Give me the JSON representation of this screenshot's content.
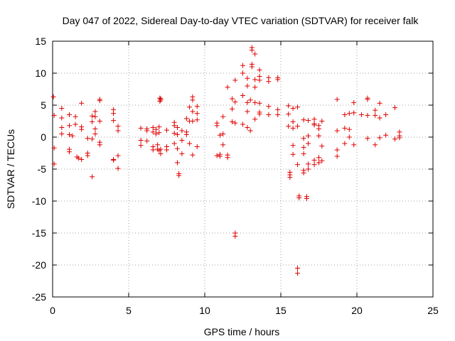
{
  "chart_data": {
    "type": "scatter",
    "title": "Day 047 of 2022, Sidereal Day-to-day VTEC variation (SDTVAR) for receiver falk",
    "xlabel": "GPS time / hours",
    "ylabel": "SDTVAR / TECUs",
    "xlim": [
      0,
      25
    ],
    "ylim": [
      -25,
      15
    ],
    "xticks": [
      0,
      5,
      10,
      15,
      20,
      25
    ],
    "yticks": [
      15,
      10,
      5,
      0,
      -5,
      -10,
      -15,
      -20,
      -25
    ],
    "grid": true,
    "marker": "+",
    "series": [
      {
        "name": "SDTVAR",
        "color": "#e00000",
        "points": [
          [
            0.05,
            6.3
          ],
          [
            0.1,
            3.4
          ],
          [
            0.1,
            -1.7
          ],
          [
            0.1,
            -4.2
          ],
          [
            0.6,
            4.5
          ],
          [
            0.6,
            3.0
          ],
          [
            0.6,
            1.5
          ],
          [
            0.6,
            0.5
          ],
          [
            1.1,
            3.5
          ],
          [
            1.1,
            1.8
          ],
          [
            1.1,
            0.4
          ],
          [
            1.1,
            -1.9
          ],
          [
            1.1,
            -2.3
          ],
          [
            1.3,
            0.2
          ],
          [
            1.5,
            3.2
          ],
          [
            1.5,
            2.0
          ],
          [
            1.6,
            -3.1
          ],
          [
            1.7,
            -3.3
          ],
          [
            1.9,
            5.3
          ],
          [
            1.9,
            1.6
          ],
          [
            1.9,
            1.2
          ],
          [
            1.9,
            -3.5
          ],
          [
            2.3,
            -0.2
          ],
          [
            2.3,
            -2.5
          ],
          [
            2.3,
            -2.9
          ],
          [
            2.6,
            3.3
          ],
          [
            2.6,
            2.4
          ],
          [
            2.6,
            -0.3
          ],
          [
            2.6,
            -6.2
          ],
          [
            2.8,
            4.0
          ],
          [
            2.8,
            3.2
          ],
          [
            2.8,
            1.3
          ],
          [
            2.8,
            0.5
          ],
          [
            3.1,
            5.9
          ],
          [
            3.1,
            5.7
          ],
          [
            3.1,
            2.5
          ],
          [
            3.1,
            -0.8
          ],
          [
            3.1,
            -1.2
          ],
          [
            4.0,
            4.3
          ],
          [
            4.0,
            3.7
          ],
          [
            4.0,
            2.6
          ],
          [
            4.0,
            -3.5
          ],
          [
            4.0,
            -3.6
          ],
          [
            4.3,
            1.7
          ],
          [
            4.3,
            1.0
          ],
          [
            4.3,
            -2.9
          ],
          [
            4.3,
            -4.9
          ],
          [
            5.8,
            1.4
          ],
          [
            5.8,
            -0.5
          ],
          [
            5.8,
            -1.3
          ],
          [
            6.2,
            1.3
          ],
          [
            6.2,
            1.0
          ],
          [
            6.2,
            -0.6
          ],
          [
            6.6,
            1.5
          ],
          [
            6.6,
            0.8
          ],
          [
            6.6,
            -1.5
          ],
          [
            6.6,
            -2.0
          ],
          [
            6.8,
            1.2
          ],
          [
            6.8,
            0.5
          ],
          [
            6.9,
            -1.2
          ],
          [
            6.9,
            -1.9
          ],
          [
            7.0,
            1.6
          ],
          [
            7.0,
            0.7
          ],
          [
            7.0,
            -2.1
          ],
          [
            7.05,
            6.1
          ],
          [
            7.05,
            5.6
          ],
          [
            7.1,
            6.0
          ],
          [
            7.1,
            5.8
          ],
          [
            7.1,
            -1.9
          ],
          [
            7.1,
            -2.6
          ],
          [
            7.5,
            1.1
          ],
          [
            7.5,
            -1.5
          ],
          [
            7.5,
            -2.0
          ],
          [
            8.0,
            2.3
          ],
          [
            8.0,
            1.8
          ],
          [
            8.0,
            0.6
          ],
          [
            8.0,
            -1.0
          ],
          [
            8.2,
            1.5
          ],
          [
            8.2,
            0.4
          ],
          [
            8.2,
            -1.8
          ],
          [
            8.2,
            -4.0
          ],
          [
            8.3,
            -5.7
          ],
          [
            8.3,
            -6.0
          ],
          [
            8.5,
            1.0
          ],
          [
            8.5,
            -0.5
          ],
          [
            8.5,
            -2.6
          ],
          [
            8.8,
            2.9
          ],
          [
            8.8,
            0.8
          ],
          [
            8.8,
            0.4
          ],
          [
            9.0,
            4.7
          ],
          [
            9.0,
            2.5
          ],
          [
            9.0,
            -1.0
          ],
          [
            9.2,
            6.3
          ],
          [
            9.2,
            5.8
          ],
          [
            9.2,
            4.0
          ],
          [
            9.2,
            2.5
          ],
          [
            9.2,
            -2.8
          ],
          [
            9.5,
            4.8
          ],
          [
            9.5,
            3.7
          ],
          [
            9.5,
            2.7
          ],
          [
            9.5,
            -1.5
          ],
          [
            10.8,
            2.2
          ],
          [
            10.8,
            1.8
          ],
          [
            10.8,
            -2.9
          ],
          [
            11.0,
            0.3
          ],
          [
            11.0,
            -2.7
          ],
          [
            11.0,
            -3.0
          ],
          [
            11.2,
            3.2
          ],
          [
            11.2,
            0.5
          ],
          [
            11.2,
            -1.2
          ],
          [
            11.5,
            7.8
          ],
          [
            11.5,
            -2.8
          ],
          [
            11.5,
            -3.2
          ],
          [
            11.8,
            6.0
          ],
          [
            11.8,
            4.4
          ],
          [
            11.8,
            2.4
          ],
          [
            12.0,
            8.9
          ],
          [
            12.0,
            5.5
          ],
          [
            12.0,
            2.2
          ],
          [
            12.0,
            -15.0
          ],
          [
            12.0,
            -15.5
          ],
          [
            12.5,
            11.2
          ],
          [
            12.5,
            10.0
          ],
          [
            12.5,
            6.5
          ],
          [
            12.5,
            2.0
          ],
          [
            12.8,
            9.2
          ],
          [
            12.8,
            8.0
          ],
          [
            12.8,
            5.4
          ],
          [
            12.8,
            4.0
          ],
          [
            12.8,
            1.5
          ],
          [
            13.0,
            5.8
          ],
          [
            13.0,
            1.0
          ],
          [
            13.1,
            14.0
          ],
          [
            13.1,
            13.6
          ],
          [
            13.1,
            11.4
          ],
          [
            13.1,
            11.0
          ],
          [
            13.3,
            13.0
          ],
          [
            13.3,
            9.0
          ],
          [
            13.3,
            7.8
          ],
          [
            13.3,
            5.4
          ],
          [
            13.3,
            2.8
          ],
          [
            13.6,
            10.5
          ],
          [
            13.6,
            9.5
          ],
          [
            13.6,
            8.9
          ],
          [
            13.6,
            5.3
          ],
          [
            13.6,
            3.9
          ],
          [
            13.6,
            3.6
          ],
          [
            14.2,
            9.3
          ],
          [
            14.2,
            8.7
          ],
          [
            14.2,
            4.8
          ],
          [
            14.2,
            3.5
          ],
          [
            14.8,
            9.3
          ],
          [
            14.8,
            9.0
          ],
          [
            14.8,
            4.3
          ],
          [
            14.8,
            3.5
          ],
          [
            15.5,
            4.9
          ],
          [
            15.5,
            3.6
          ],
          [
            15.5,
            1.7
          ],
          [
            15.6,
            -5.5
          ],
          [
            15.6,
            -5.9
          ],
          [
            15.6,
            -6.3
          ],
          [
            15.8,
            4.5
          ],
          [
            15.8,
            2.4
          ],
          [
            15.8,
            1.4
          ],
          [
            15.8,
            -1.3
          ],
          [
            15.8,
            -2.7
          ],
          [
            16.1,
            4.7
          ],
          [
            16.1,
            1.7
          ],
          [
            16.1,
            -4.3
          ],
          [
            16.1,
            -20.5
          ],
          [
            16.1,
            -21.3
          ],
          [
            16.2,
            -9.2
          ],
          [
            16.2,
            -9.5
          ],
          [
            16.5,
            2.7
          ],
          [
            16.5,
            -0.2
          ],
          [
            16.5,
            -1.6
          ],
          [
            16.5,
            -2.6
          ],
          [
            16.5,
            -5.2
          ],
          [
            16.5,
            -5.6
          ],
          [
            16.7,
            -9.3
          ],
          [
            16.7,
            -9.6
          ],
          [
            16.8,
            2.6
          ],
          [
            16.8,
            0.2
          ],
          [
            16.8,
            -1.0
          ],
          [
            16.8,
            -4.2
          ],
          [
            16.8,
            -5.0
          ],
          [
            17.2,
            2.8
          ],
          [
            17.2,
            2.1
          ],
          [
            17.2,
            1.9
          ],
          [
            17.2,
            -3.6
          ],
          [
            17.2,
            -4.3
          ],
          [
            17.5,
            1.8
          ],
          [
            17.5,
            1.3
          ],
          [
            17.5,
            0.2
          ],
          [
            17.5,
            -3.2
          ],
          [
            17.5,
            -4.0
          ],
          [
            17.7,
            2.5
          ],
          [
            17.7,
            -1.4
          ],
          [
            17.7,
            -3.7
          ],
          [
            18.7,
            5.9
          ],
          [
            18.7,
            1.0
          ],
          [
            18.7,
            -2.0
          ],
          [
            18.7,
            -3.0
          ],
          [
            19.2,
            3.5
          ],
          [
            19.2,
            1.4
          ],
          [
            19.2,
            -1.0
          ],
          [
            19.5,
            3.7
          ],
          [
            19.5,
            1.2
          ],
          [
            19.5,
            0.0
          ],
          [
            19.8,
            5.4
          ],
          [
            19.8,
            3.8
          ],
          [
            19.8,
            -1.2
          ],
          [
            20.3,
            3.5
          ],
          [
            20.7,
            6.1
          ],
          [
            20.7,
            5.9
          ],
          [
            20.7,
            3.4
          ],
          [
            20.7,
            -0.2
          ],
          [
            21.2,
            4.2
          ],
          [
            21.2,
            3.4
          ],
          [
            21.2,
            -1.2
          ],
          [
            21.5,
            5.3
          ],
          [
            21.5,
            3.0
          ],
          [
            21.5,
            -0.1
          ],
          [
            21.9,
            3.5
          ],
          [
            21.9,
            0.3
          ],
          [
            22.5,
            4.6
          ],
          [
            22.5,
            -0.3
          ],
          [
            22.8,
            0.8
          ],
          [
            22.8,
            0.2
          ],
          [
            22.8,
            -0.1
          ]
        ]
      }
    ]
  }
}
